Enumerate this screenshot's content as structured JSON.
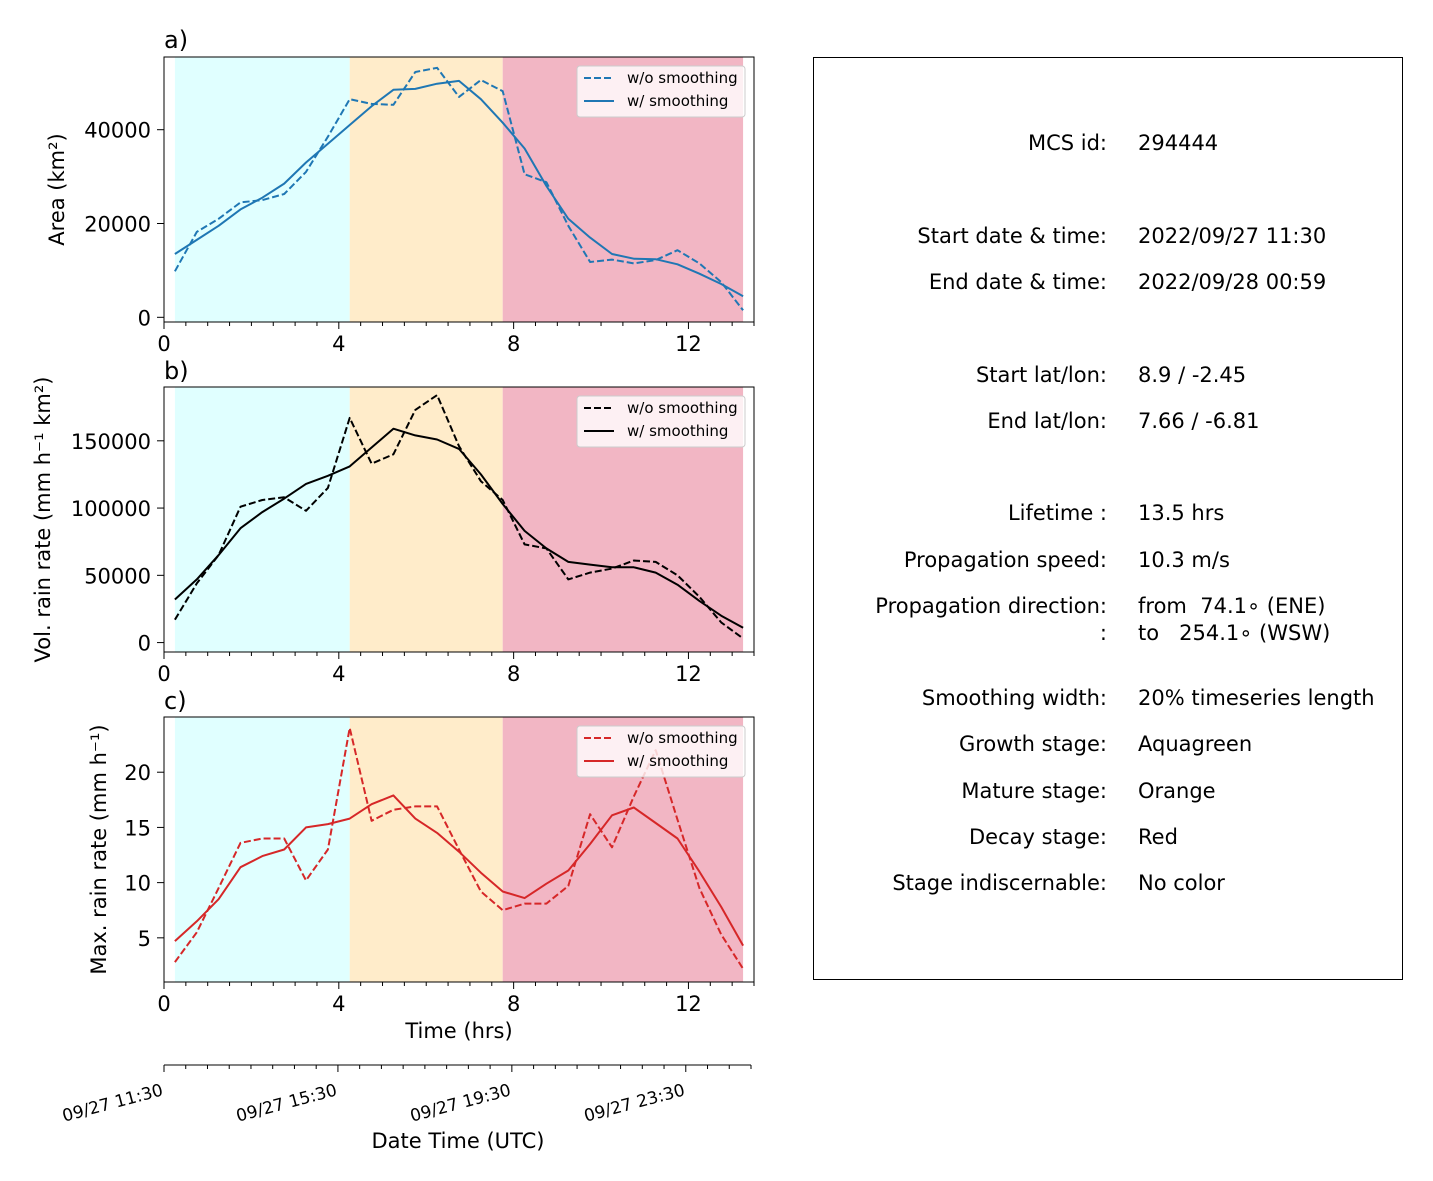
{
  "stage_colors": {
    "growth": "#e0ffff",
    "mature": "#ffecca",
    "decay": "#f2b6c4"
  },
  "stage_bounds_hrs": [
    0.25,
    4.25,
    7.75,
    13.25
  ],
  "time_axis": {
    "label": "Time (hrs)",
    "ticks": [
      0,
      4,
      8,
      12
    ],
    "xlim": [
      0,
      13.5
    ]
  },
  "datetime_axis": {
    "label": "Date Time (UTC)",
    "ticks": [
      {
        "hrs": 0,
        "label": "09/27 11:30"
      },
      {
        "hrs": 4,
        "label": "09/27 15:30"
      },
      {
        "hrs": 8,
        "label": "09/27 19:30"
      },
      {
        "hrs": 12,
        "label": "09/27 23:30"
      }
    ]
  },
  "chart_data": [
    {
      "type": "line",
      "panel_label": "a)",
      "ylabel": "Area  (km²)",
      "ylim": [
        -1000,
        55500
      ],
      "yticks": [
        0,
        20000,
        40000
      ],
      "color": "#1f77b4",
      "x": [
        0.25,
        0.75,
        1.25,
        1.75,
        2.25,
        2.75,
        3.25,
        3.75,
        4.25,
        4.75,
        5.25,
        5.75,
        6.25,
        6.75,
        7.25,
        7.75,
        8.25,
        8.75,
        9.25,
        9.75,
        10.25,
        10.75,
        11.25,
        11.75,
        12.25,
        12.75,
        13.25
      ],
      "series": [
        {
          "name": "w/o smoothing",
          "dash": true,
          "values": [
            9800,
            18200,
            21000,
            24500,
            25000,
            26300,
            31000,
            38500,
            46500,
            45500,
            45300,
            52300,
            53200,
            47000,
            50600,
            48200,
            30500,
            28800,
            19500,
            11800,
            12300,
            11500,
            12200,
            14300,
            11500,
            7500,
            1500
          ]
        },
        {
          "name": "w/ smoothing",
          "dash": false,
          "values": [
            13500,
            16500,
            19500,
            23000,
            25500,
            28500,
            33000,
            37000,
            41000,
            45000,
            48500,
            48700,
            49800,
            50400,
            46500,
            41500,
            36000,
            28000,
            21000,
            17000,
            13500,
            12500,
            12400,
            11300,
            9300,
            7100,
            4500
          ]
        }
      ]
    },
    {
      "type": "line",
      "panel_label": "b)",
      "ylabel": "Vol. rain rate (mm h⁻¹ km²)",
      "ylim": [
        -7000,
        190000
      ],
      "yticks": [
        0,
        50000,
        100000,
        150000
      ],
      "color": "#000000",
      "x": [
        0.25,
        0.75,
        1.25,
        1.75,
        2.25,
        2.75,
        3.25,
        3.75,
        4.25,
        4.75,
        5.25,
        5.75,
        6.25,
        6.75,
        7.25,
        7.75,
        8.25,
        8.75,
        9.25,
        9.75,
        10.25,
        10.75,
        11.25,
        11.75,
        12.25,
        12.75,
        13.25
      ],
      "series": [
        {
          "name": "w/o smoothing",
          "dash": true,
          "values": [
            17000,
            44000,
            65000,
            101000,
            106000,
            108000,
            98000,
            115000,
            167000,
            133000,
            140000,
            173000,
            184000,
            146000,
            120000,
            106000,
            73000,
            70000,
            47000,
            52000,
            55000,
            61000,
            60000,
            50000,
            34000,
            15000,
            3000
          ]
        },
        {
          "name": "w/ smoothing",
          "dash": false,
          "values": [
            32000,
            47000,
            65000,
            85000,
            97000,
            107000,
            118000,
            124000,
            131000,
            145000,
            159000,
            154000,
            151000,
            144000,
            125000,
            103000,
            83000,
            70000,
            60000,
            58000,
            56000,
            56000,
            52000,
            43000,
            31000,
            20000,
            11000
          ]
        }
      ]
    },
    {
      "type": "line",
      "panel_label": "c)",
      "ylabel": "Max. rain rate  (mm h⁻¹)",
      "ylim": [
        1.0,
        25.0
      ],
      "yticks": [
        5,
        10,
        15,
        20
      ],
      "color": "#d62728",
      "x": [
        0.25,
        0.75,
        1.25,
        1.75,
        2.25,
        2.75,
        3.25,
        3.75,
        4.25,
        4.75,
        5.25,
        5.75,
        6.25,
        6.75,
        7.25,
        7.75,
        8.25,
        8.75,
        9.25,
        9.75,
        10.25,
        10.75,
        11.25,
        11.75,
        12.25,
        12.75,
        13.25
      ],
      "series": [
        {
          "name": "w/o smoothing",
          "dash": true,
          "values": [
            2.8,
            5.5,
            9.5,
            13.6,
            14.0,
            14.0,
            10.2,
            13.0,
            24.0,
            15.6,
            16.6,
            16.9,
            16.9,
            13.0,
            9.2,
            7.5,
            8.1,
            8.1,
            9.7,
            16.2,
            13.2,
            17.8,
            22.0,
            15.7,
            9.5,
            5.3,
            2.2
          ]
        },
        {
          "name": "w/ smoothing",
          "dash": false,
          "values": [
            4.7,
            6.5,
            8.5,
            11.4,
            12.4,
            13.0,
            15.0,
            15.3,
            15.8,
            17.1,
            17.9,
            15.8,
            14.5,
            12.8,
            10.9,
            9.2,
            8.6,
            9.9,
            11.1,
            13.5,
            16.1,
            16.8,
            15.4,
            14.0,
            11.0,
            7.8,
            4.3
          ]
        }
      ]
    }
  ],
  "info": {
    "rows": [
      {
        "label": "MCS id:",
        "value": "294444"
      },
      {
        "label": "Start date & time:",
        "value": "2022/09/27 11:30"
      },
      {
        "label": "End date & time:",
        "value": "2022/09/28 00:59"
      },
      {
        "label": "Start lat/lon:",
        "value": "8.9 / -2.45"
      },
      {
        "label": "End lat/lon:",
        "value": "7.66 / -6.81"
      },
      {
        "label": "Lifetime :",
        "value": "13.5 hrs"
      },
      {
        "label": "Propagation speed:",
        "value": "10.3 m/s"
      },
      {
        "label": "Propagation direction:",
        "value": "from  74.1∘ (ENE)"
      },
      {
        "label": ":",
        "value": "to   254.1∘ (WSW)"
      },
      {
        "label": "Smoothing width:",
        "value": "20% timeseries length"
      },
      {
        "label": "Growth stage:",
        "value": "Aquagreen"
      },
      {
        "label": "Mature stage:",
        "value": "Orange"
      },
      {
        "label": "Decay stage:",
        "value": "Red"
      },
      {
        "label": "Stage indiscernable:",
        "value": "No color"
      }
    ]
  }
}
